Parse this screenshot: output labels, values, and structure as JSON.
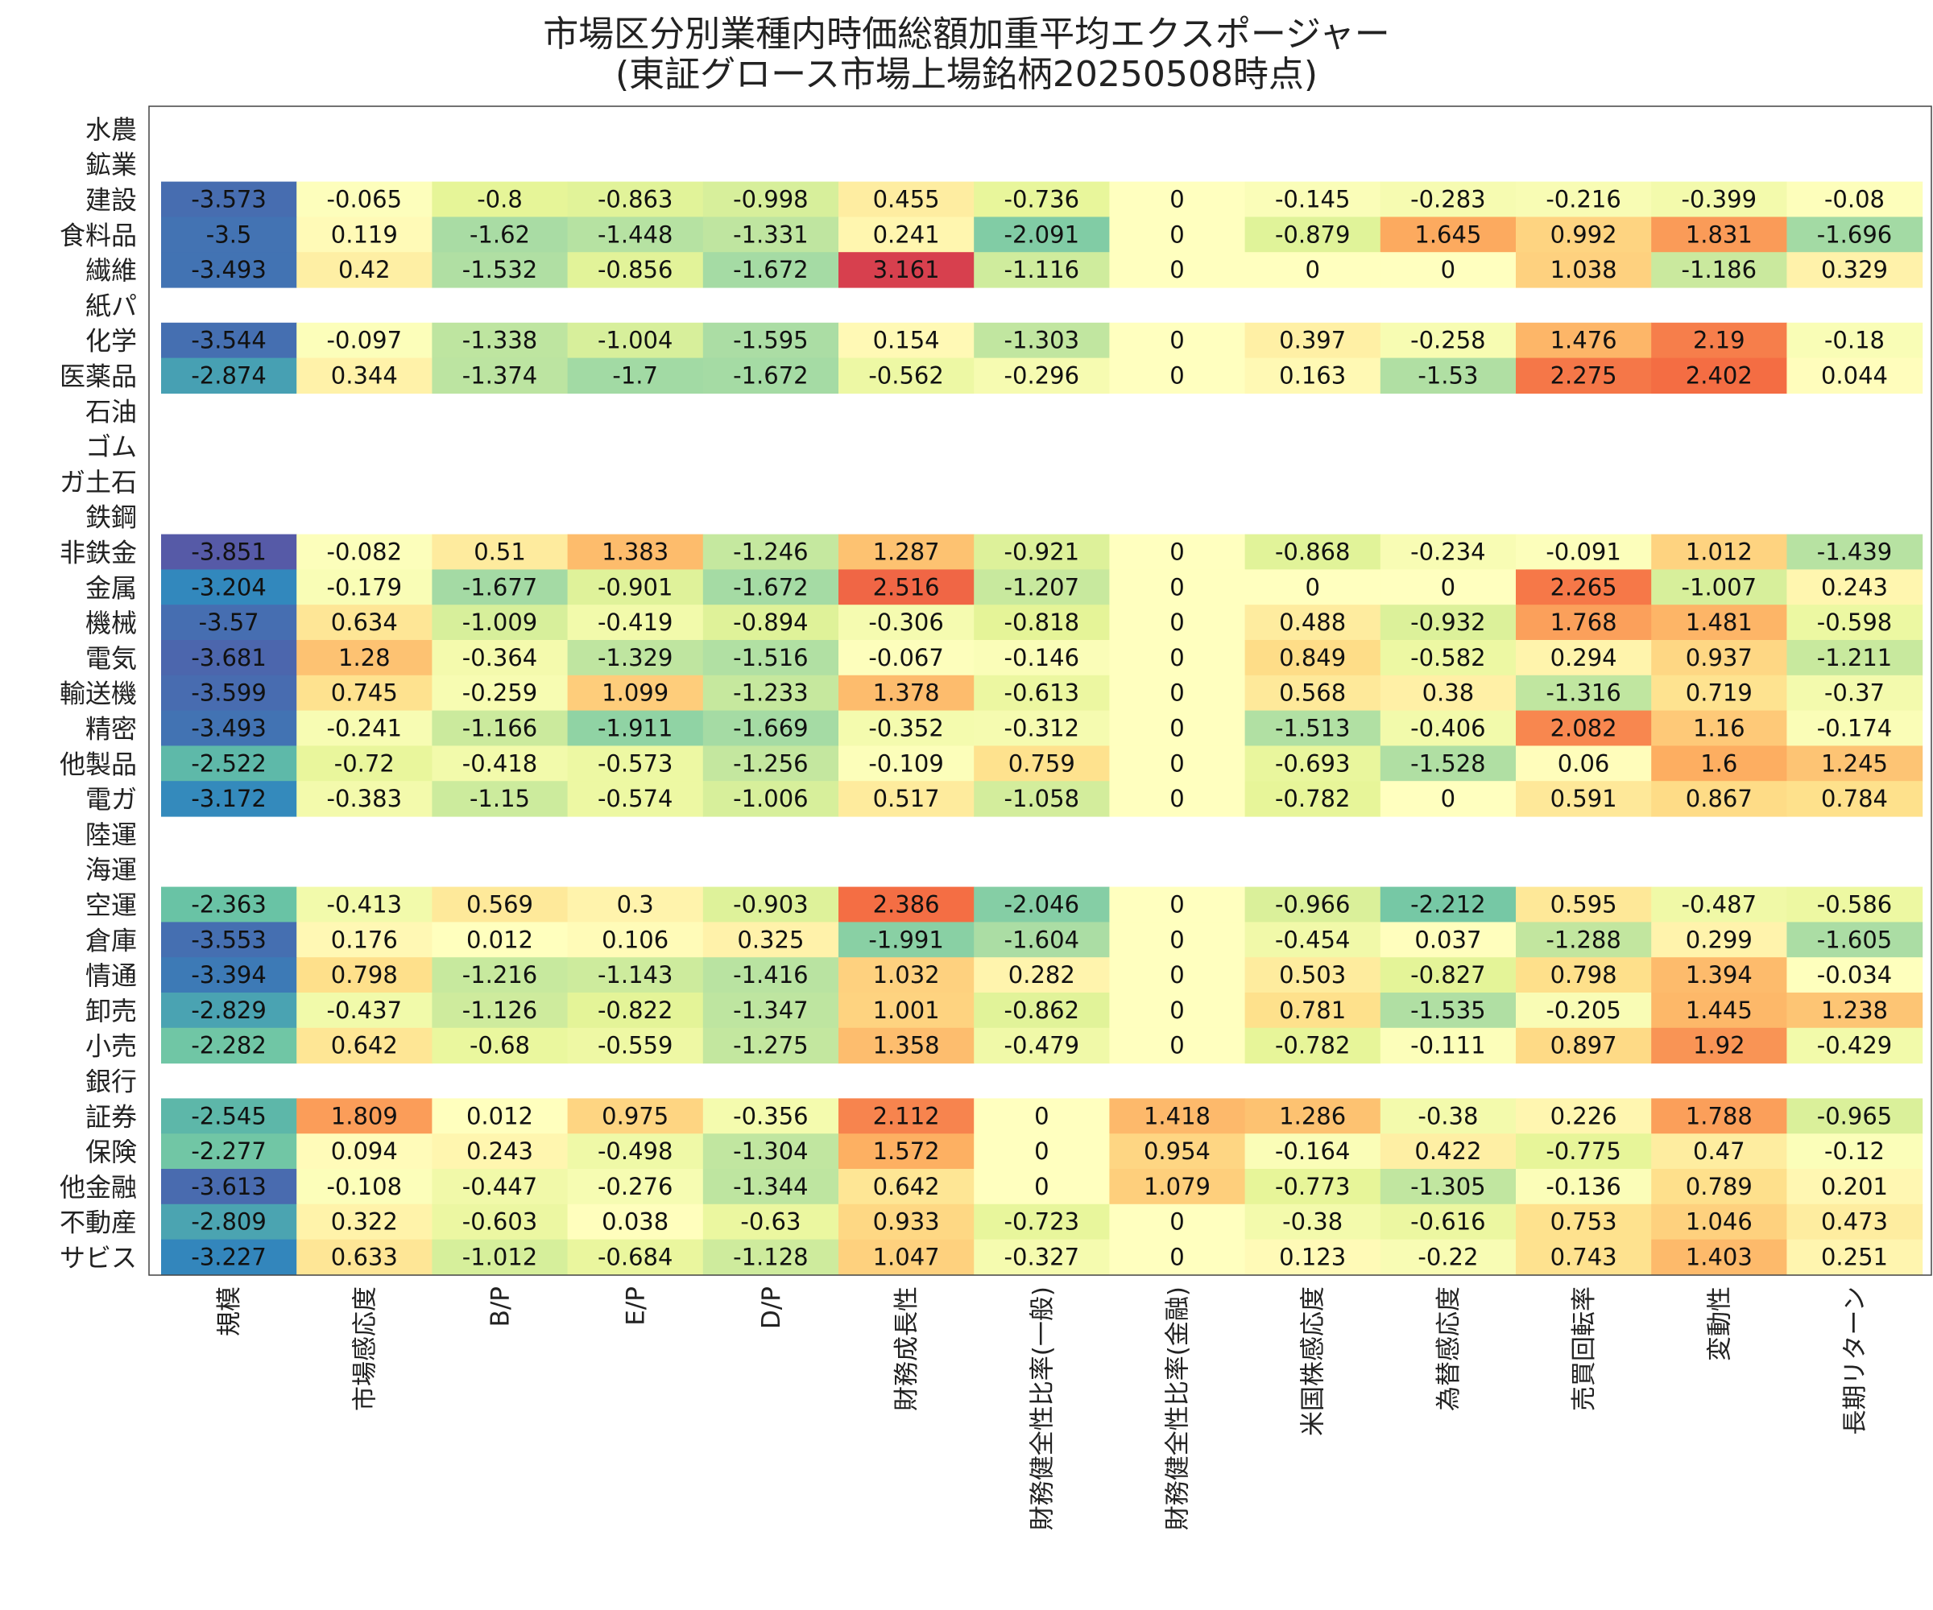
{
  "chart_data": {
    "type": "heatmap",
    "title": "市場区分別業種内時価総額加重平均エクスポージャー",
    "subtitle": "(東証グロース市場上場銘柄20250508時点)",
    "columns": [
      "規模",
      "市場感応度",
      "B/P",
      "E/P",
      "D/P",
      "財務成長性",
      "財務健全性比率(一般)",
      "財務健全性比率(金融)",
      "米国株感応度",
      "為替感応度",
      "売買回転率",
      "変動性",
      "長期リターン"
    ],
    "rows": [
      "水農",
      "鉱業",
      "建設",
      "食料品",
      "繊維",
      "紙パ",
      "化学",
      "医薬品",
      "石油",
      "ゴム",
      "ガ土石",
      "鉄鋼",
      "非鉄金",
      "金属",
      "機械",
      "電気",
      "輸送機",
      "精密",
      "他製品",
      "電ガ",
      "陸運",
      "海運",
      "空運",
      "倉庫",
      "情通",
      "卸売",
      "小売",
      "銀行",
      "証券",
      "保険",
      "他金融",
      "不動産",
      "サビス"
    ],
    "values": [
      null,
      null,
      [
        -3.573,
        -0.065,
        -0.8,
        -0.863,
        -0.998,
        0.455,
        -0.736,
        0,
        -0.145,
        -0.283,
        -0.216,
        -0.399,
        -0.08
      ],
      [
        -3.5,
        0.119,
        -1.62,
        -1.448,
        -1.331,
        0.241,
        -2.091,
        0,
        -0.879,
        1.645,
        0.992,
        1.831,
        -1.696
      ],
      [
        -3.493,
        0.42,
        -1.532,
        -0.856,
        -1.672,
        3.161,
        -1.116,
        0,
        0,
        0,
        1.038,
        -1.186,
        0.329
      ],
      null,
      [
        -3.544,
        -0.097,
        -1.338,
        -1.004,
        -1.595,
        0.154,
        -1.303,
        0,
        0.397,
        -0.258,
        1.476,
        2.19,
        -0.18
      ],
      [
        -2.874,
        0.344,
        -1.374,
        -1.7,
        -1.672,
        -0.562,
        -0.296,
        0,
        0.163,
        -1.53,
        2.275,
        2.402,
        0.044
      ],
      null,
      null,
      null,
      null,
      [
        -3.851,
        -0.082,
        0.51,
        1.383,
        -1.246,
        1.287,
        -0.921,
        0,
        -0.868,
        -0.234,
        -0.091,
        1.012,
        -1.439
      ],
      [
        -3.204,
        -0.179,
        -1.677,
        -0.901,
        -1.672,
        2.516,
        -1.207,
        0,
        0,
        0,
        2.265,
        -1.007,
        0.243
      ],
      [
        -3.57,
        0.634,
        -1.009,
        -0.419,
        -0.894,
        -0.306,
        -0.818,
        0,
        0.488,
        -0.932,
        1.768,
        1.481,
        -0.598
      ],
      [
        -3.681,
        1.28,
        -0.364,
        -1.329,
        -1.516,
        -0.067,
        -0.146,
        0,
        0.849,
        -0.582,
        0.294,
        0.937,
        -1.211
      ],
      [
        -3.599,
        0.745,
        -0.259,
        1.099,
        -1.233,
        1.378,
        -0.613,
        0,
        0.568,
        0.38,
        -1.316,
        0.719,
        -0.37
      ],
      [
        -3.493,
        -0.241,
        -1.166,
        -1.911,
        -1.669,
        -0.352,
        -0.312,
        0,
        -1.513,
        -0.406,
        2.082,
        1.16,
        -0.174
      ],
      [
        -2.522,
        -0.72,
        -0.418,
        -0.573,
        -1.256,
        -0.109,
        0.759,
        0,
        -0.693,
        -1.528,
        0.06,
        1.6,
        1.245
      ],
      [
        -3.172,
        -0.383,
        -1.15,
        -0.574,
        -1.006,
        0.517,
        -1.058,
        0,
        -0.782,
        0,
        0.591,
        0.867,
        0.784
      ],
      null,
      null,
      [
        -2.363,
        -0.413,
        0.569,
        0.3,
        -0.903,
        2.386,
        -2.046,
        0,
        -0.966,
        -2.212,
        0.595,
        -0.487,
        -0.586
      ],
      [
        -3.553,
        0.176,
        0.012,
        0.106,
        0.325,
        -1.991,
        -1.604,
        0,
        -0.454,
        0.037,
        -1.288,
        0.299,
        -1.605
      ],
      [
        -3.394,
        0.798,
        -1.216,
        -1.143,
        -1.416,
        1.032,
        0.282,
        0,
        0.503,
        -0.827,
        0.798,
        1.394,
        -0.034
      ],
      [
        -2.829,
        -0.437,
        -1.126,
        -0.822,
        -1.347,
        1.001,
        -0.862,
        0,
        0.781,
        -1.535,
        -0.205,
        1.445,
        1.238
      ],
      [
        -2.282,
        0.642,
        -0.68,
        -0.559,
        -1.275,
        1.358,
        -0.479,
        0,
        -0.782,
        -0.111,
        0.897,
        1.92,
        -0.429
      ],
      null,
      [
        -2.545,
        1.809,
        0.012,
        0.975,
        -0.356,
        2.112,
        0,
        1.418,
        1.286,
        -0.38,
        0.226,
        1.788,
        -0.965
      ],
      [
        -2.277,
        0.094,
        0.243,
        -0.498,
        -1.304,
        1.572,
        0,
        0.954,
        -0.164,
        0.422,
        -0.775,
        0.47,
        -0.12
      ],
      [
        -3.613,
        -0.108,
        -0.447,
        -0.276,
        -1.344,
        0.642,
        0,
        1.079,
        -0.773,
        -1.305,
        -0.136,
        0.789,
        0.201
      ],
      [
        -2.809,
        0.322,
        -0.603,
        0.038,
        -0.63,
        0.933,
        -0.723,
        0,
        -0.38,
        -0.616,
        0.753,
        1.046,
        0.473
      ],
      [
        -3.227,
        0.633,
        -1.012,
        -0.684,
        -1.128,
        1.047,
        -0.327,
        0,
        0.123,
        -0.22,
        0.743,
        1.403,
        0.251
      ]
    ],
    "colormap": "Spectral_r",
    "value_range": [
      -4,
      4
    ]
  }
}
